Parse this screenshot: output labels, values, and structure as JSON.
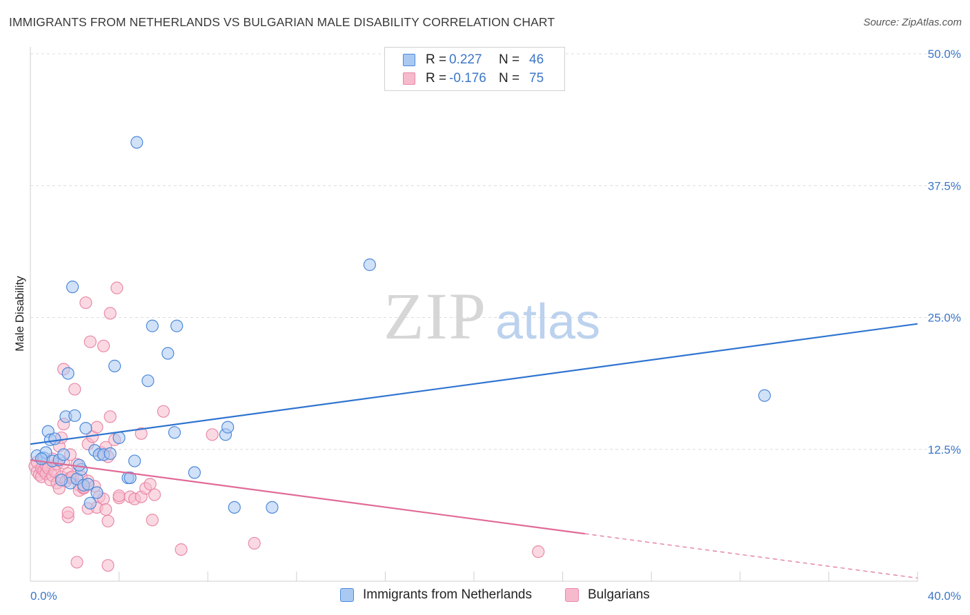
{
  "header": {
    "title": "IMMIGRANTS FROM NETHERLANDS VS BULGARIAN MALE DISABILITY CORRELATION CHART",
    "source": "Source: ZipAtlas.com"
  },
  "watermark": {
    "zip": "ZIP",
    "atlas": "atlas"
  },
  "colors": {
    "blue_fill": "#a9c9f2",
    "blue_stroke": "#4d88d8",
    "blue_line": "#2f74d0",
    "pink_fill": "#f7b9cc",
    "pink_stroke": "#e889a8",
    "pink_line": "#e06a96",
    "tick_text": "#3b76c8",
    "grid": "#dcdcdc"
  },
  "legend": {
    "rows": [
      {
        "r_label": "R =",
        "r_value": "0.227",
        "n_label": "N =",
        "n_value": "46"
      },
      {
        "r_label": "R =",
        "r_value": "-0.176",
        "n_label": "N =",
        "n_value": "75"
      }
    ]
  },
  "bottom_legend": {
    "series_a": "Immigrants from Netherlands",
    "series_b": "Bulgarians"
  },
  "chart_data": {
    "type": "scatter",
    "title": "IMMIGRANTS FROM NETHERLANDS VS BULGARIAN MALE DISABILITY CORRELATION CHART",
    "xlabel": "",
    "ylabel": "Male Disability",
    "xlim": [
      0,
      40
    ],
    "ylim": [
      0,
      50
    ],
    "x_tick_labels": [
      "0.0%",
      "40.0%"
    ],
    "y_ticks": [
      12.5,
      25.0,
      37.5,
      50.0
    ],
    "y_tick_labels": [
      "12.5%",
      "25.0%",
      "37.5%",
      "50.0%"
    ],
    "grid": true,
    "legend_position": "top-center",
    "series": [
      {
        "name": "Immigrants from Netherlands",
        "r": 0.227,
        "n": 46,
        "trend": {
          "x": [
            0,
            40
          ],
          "y": [
            13.0,
            24.4
          ]
        },
        "points": [
          [
            0.3,
            11.9
          ],
          [
            0.6,
            11.7
          ],
          [
            0.7,
            12.2
          ],
          [
            0.8,
            14.2
          ],
          [
            0.9,
            13.4
          ],
          [
            1.0,
            11.4
          ],
          [
            1.1,
            13.5
          ],
          [
            1.3,
            11.5
          ],
          [
            1.5,
            12.0
          ],
          [
            1.6,
            15.6
          ],
          [
            1.7,
            19.7
          ],
          [
            1.8,
            9.3
          ],
          [
            1.9,
            27.9
          ],
          [
            2.0,
            15.7
          ],
          [
            2.1,
            9.7
          ],
          [
            2.3,
            10.6
          ],
          [
            2.4,
            9.1
          ],
          [
            2.5,
            14.5
          ],
          [
            2.6,
            9.2
          ],
          [
            2.7,
            7.4
          ],
          [
            2.9,
            12.4
          ],
          [
            3.0,
            8.4
          ],
          [
            3.1,
            12.0
          ],
          [
            3.3,
            12.0
          ],
          [
            3.6,
            12.1
          ],
          [
            3.8,
            20.4
          ],
          [
            4.0,
            13.6
          ],
          [
            4.4,
            9.8
          ],
          [
            4.5,
            9.8
          ],
          [
            4.7,
            11.4
          ],
          [
            4.8,
            41.6
          ],
          [
            5.3,
            19.0
          ],
          [
            5.5,
            24.2
          ],
          [
            6.2,
            21.6
          ],
          [
            6.5,
            14.1
          ],
          [
            6.6,
            24.2
          ],
          [
            7.4,
            10.3
          ],
          [
            8.8,
            13.9
          ],
          [
            8.9,
            14.6
          ],
          [
            9.2,
            7.0
          ],
          [
            10.9,
            7.0
          ],
          [
            15.3,
            30.0
          ],
          [
            33.1,
            17.6
          ],
          [
            0.5,
            11.6
          ],
          [
            1.4,
            9.6
          ],
          [
            2.2,
            11.0
          ]
        ]
      },
      {
        "name": "Bulgarians",
        "r": -0.176,
        "n": 75,
        "trend": {
          "x": [
            0,
            25
          ],
          "y": [
            11.5,
            4.5
          ]
        },
        "trend_dashed": {
          "x": [
            25,
            40
          ],
          "y": [
            4.5,
            0.3
          ]
        },
        "points": [
          [
            0.2,
            10.9
          ],
          [
            0.3,
            10.4
          ],
          [
            0.3,
            11.3
          ],
          [
            0.4,
            10.1
          ],
          [
            0.5,
            10.7
          ],
          [
            0.5,
            9.9
          ],
          [
            0.6,
            10.5
          ],
          [
            0.7,
            10.2
          ],
          [
            0.7,
            11.0
          ],
          [
            0.8,
            10.7
          ],
          [
            0.9,
            9.6
          ],
          [
            1.0,
            11.6
          ],
          [
            1.0,
            10.0
          ],
          [
            1.1,
            10.4
          ],
          [
            1.2,
            9.3
          ],
          [
            1.2,
            11.1
          ],
          [
            1.3,
            8.8
          ],
          [
            1.3,
            12.8
          ],
          [
            1.4,
            13.6
          ],
          [
            1.4,
            9.9
          ],
          [
            1.5,
            11.2
          ],
          [
            1.5,
            20.1
          ],
          [
            1.5,
            14.9
          ],
          [
            1.6,
            9.5
          ],
          [
            1.7,
            10.2
          ],
          [
            1.7,
            6.1
          ],
          [
            1.7,
            6.5
          ],
          [
            1.8,
            12.0
          ],
          [
            1.8,
            9.8
          ],
          [
            1.9,
            9.9
          ],
          [
            2.0,
            18.2
          ],
          [
            2.1,
            1.8
          ],
          [
            2.1,
            11.1
          ],
          [
            2.2,
            9.1
          ],
          [
            2.2,
            8.6
          ],
          [
            2.3,
            9.9
          ],
          [
            2.4,
            8.8
          ],
          [
            2.4,
            8.9
          ],
          [
            2.5,
            26.4
          ],
          [
            2.6,
            9.5
          ],
          [
            2.6,
            13.0
          ],
          [
            2.6,
            6.9
          ],
          [
            2.7,
            22.7
          ],
          [
            2.8,
            13.7
          ],
          [
            2.9,
            9.0
          ],
          [
            3.0,
            7.0
          ],
          [
            3.0,
            14.6
          ],
          [
            3.1,
            8.0
          ],
          [
            3.2,
            12.2
          ],
          [
            3.3,
            7.8
          ],
          [
            3.3,
            22.3
          ],
          [
            3.4,
            6.8
          ],
          [
            3.4,
            12.7
          ],
          [
            3.5,
            11.8
          ],
          [
            3.5,
            5.7
          ],
          [
            3.5,
            1.5
          ],
          [
            3.6,
            25.4
          ],
          [
            3.6,
            15.6
          ],
          [
            3.8,
            13.4
          ],
          [
            3.9,
            27.8
          ],
          [
            4.0,
            7.9
          ],
          [
            4.0,
            8.1
          ],
          [
            4.5,
            8.0
          ],
          [
            4.7,
            7.8
          ],
          [
            5.0,
            8.0
          ],
          [
            5.0,
            14.0
          ],
          [
            5.2,
            8.8
          ],
          [
            5.4,
            9.2
          ],
          [
            5.5,
            5.8
          ],
          [
            5.6,
            8.2
          ],
          [
            6.0,
            16.1
          ],
          [
            6.8,
            3.0
          ],
          [
            8.2,
            13.9
          ],
          [
            10.1,
            3.6
          ],
          [
            22.9,
            2.8
          ]
        ]
      }
    ]
  }
}
